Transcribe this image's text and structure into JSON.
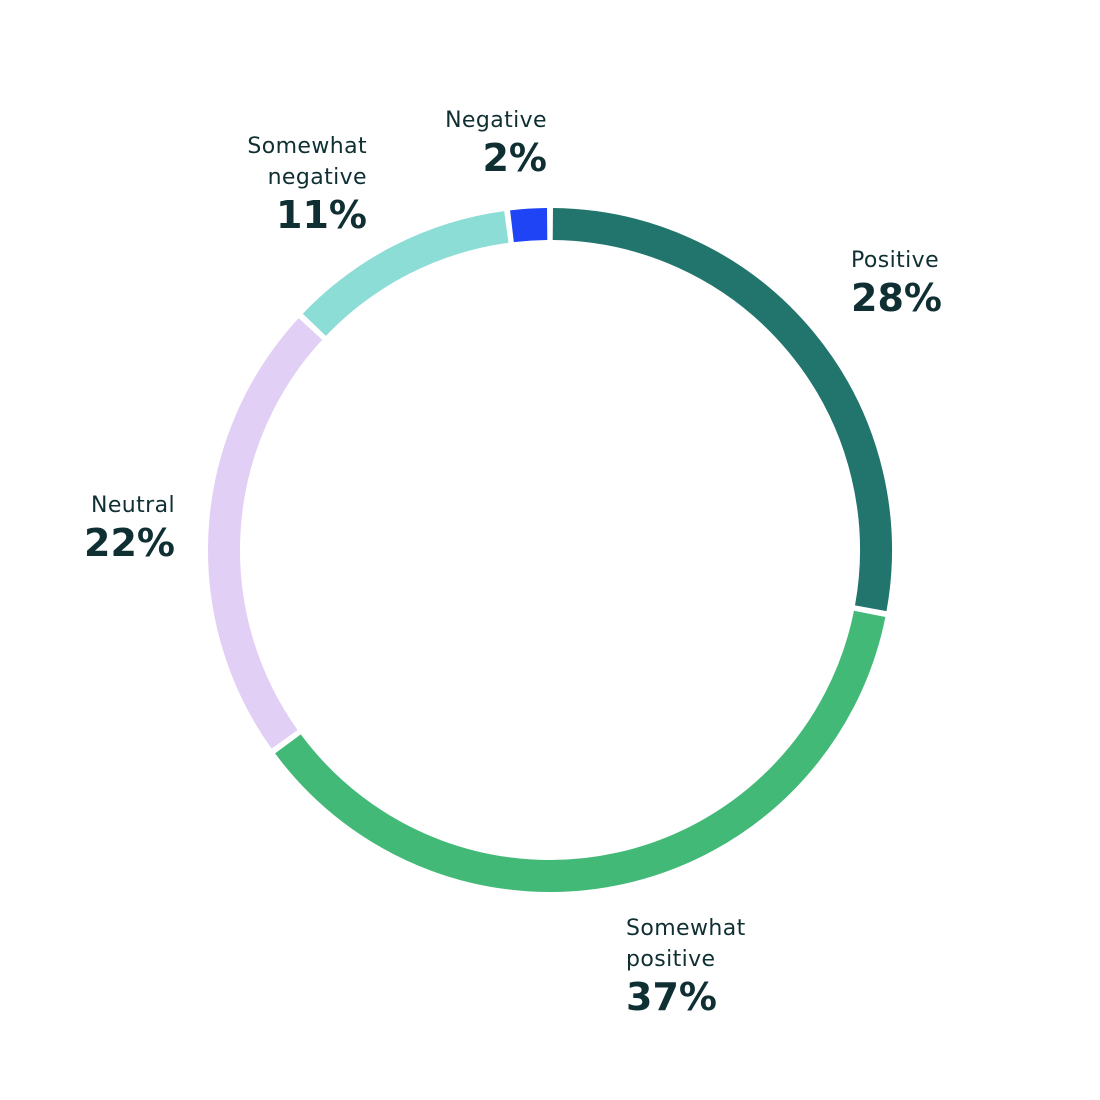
{
  "chart_data": {
    "type": "pie",
    "title": "",
    "slices": [
      {
        "label": "Positive",
        "value": 28,
        "value_label": "28%",
        "color": "#21756d"
      },
      {
        "label": "Somewhat positive",
        "value": 37,
        "value_label": "37%",
        "color": "#43b978"
      },
      {
        "label": "Neutral",
        "value": 22,
        "value_label": "22%",
        "color": "#e2cff5"
      },
      {
        "label": "Somewhat negative",
        "value": 11,
        "value_label": "11%",
        "color": "#8cddd6"
      },
      {
        "label": "Negative",
        "value": 2,
        "value_label": "2%",
        "color": "#1e44f6"
      }
    ],
    "style": "donut",
    "start_angle": "top",
    "direction": "clockwise"
  },
  "labels": {
    "positive_name": "Positive",
    "positive_value": "28%",
    "somewhat_positive_name": "Somewhat\npositive",
    "somewhat_positive_value": "37%",
    "neutral_name": "Neutral",
    "neutral_value": "22%",
    "somewhat_negative_name": "Somewhat\nnegative",
    "somewhat_negative_value": "11%",
    "negative_name": "Negative",
    "negative_value": "2%"
  }
}
